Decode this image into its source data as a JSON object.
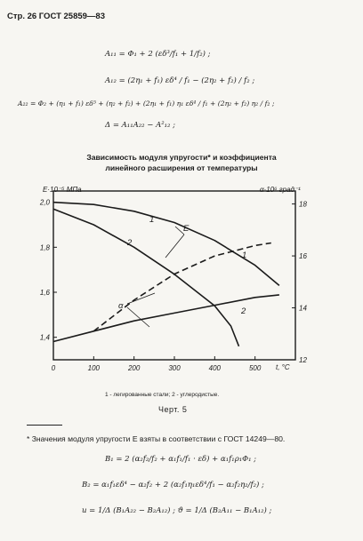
{
  "header": {
    "page_ref": "Стр. 26 ГОСТ 25859—83"
  },
  "formulas": {
    "a11": "A₁₁ = Φ₁ + 2 (εδ³/f₁ + 1/f₂) ;",
    "a12": "A₁₂ = (2η₁ + f₁) εδ⁴ / f₁ − (2η₂ + f₂) / f₂ ;",
    "a22": "A₂₂ = Φ₂ + (η₁ + f₁) εδ⁵ + (η₂ + f₂) + (2η₁ + f₁) η₁ εδ⁴ / f₁ + (2η₂ + f₂) η₂ / f₂ ;",
    "delta": "Δ = A₁₁A₂₂ − A²₁₂ ;"
  },
  "chart_caption": {
    "line1": "Зависимость модуля упругости* и коэффициента",
    "line2": "линейного расширения от температуры"
  },
  "chart_data": {
    "type": "line",
    "xlabel": "t, °C",
    "ylabel_left": "E·10⁻⁵ МПа",
    "ylabel_right": "α·10⁶ град⁻¹",
    "x_ticks": [
      "0",
      "100",
      "200",
      "300",
      "400",
      "500"
    ],
    "y_left_ticks": [
      "1,4",
      "1,6",
      "1,8",
      "2,0"
    ],
    "y_right_ticks": [
      "12",
      "14",
      "16",
      "18"
    ],
    "xlim": [
      0,
      600
    ],
    "ylim_left": [
      1.3,
      2.05
    ],
    "ylim_right": [
      12,
      18.5
    ],
    "curve_labels": {
      "E": "E",
      "alpha": "α",
      "c1": "1",
      "c2": "2"
    },
    "series": [
      {
        "name": "1",
        "axis": "left",
        "dash": false,
        "points": [
          [
            0,
            2.0
          ],
          [
            100,
            1.99
          ],
          [
            200,
            1.96
          ],
          [
            300,
            1.91
          ],
          [
            400,
            1.83
          ],
          [
            500,
            1.72
          ],
          [
            560,
            1.63
          ]
        ]
      },
      {
        "name": "2",
        "axis": "left",
        "dash": false,
        "points": [
          [
            0,
            1.97
          ],
          [
            100,
            1.9
          ],
          [
            200,
            1.8
          ],
          [
            300,
            1.68
          ],
          [
            400,
            1.54
          ],
          [
            440,
            1.45
          ],
          [
            460,
            1.36
          ]
        ]
      },
      {
        "name": "1",
        "axis": "right",
        "dash": true,
        "points": [
          [
            100,
            13.1
          ],
          [
            200,
            14.3
          ],
          [
            300,
            15.3
          ],
          [
            400,
            16.0
          ],
          [
            500,
            16.4
          ],
          [
            540,
            16.5
          ]
        ]
      },
      {
        "name": "2",
        "axis": "right",
        "dash": false,
        "points": [
          [
            0,
            12.7
          ],
          [
            100,
            13.1
          ],
          [
            200,
            13.5
          ],
          [
            300,
            13.8
          ],
          [
            400,
            14.1
          ],
          [
            500,
            14.4
          ],
          [
            560,
            14.5
          ]
        ]
      }
    ]
  },
  "legend": "1 - легированные стали; 2 - углеродистые.",
  "figure_label": "Черт. 5",
  "footnote": "* Значения модуля упругости E взяты в соответствии с ГОСТ 14249—80.",
  "formulas2": {
    "b1": "B₁ = 2 (α₂f₂/f₂ + α₁f₁/f₁ · εδ) + α₁f₁ρ₁Φ₁ ;",
    "b2": "B₂ = α₁f₁εδ⁴ − α₂f₂ + 2 (α₂f₁η₁εδ⁴/f₁ − α₂f₂η₂/f₂) ;",
    "uv": "u = 1/Δ (B₁A₂₂ − B₂A₁₂) ;   ϑ = 1/Δ (B₂A₁₁ − B₁A₁₂) ;"
  }
}
